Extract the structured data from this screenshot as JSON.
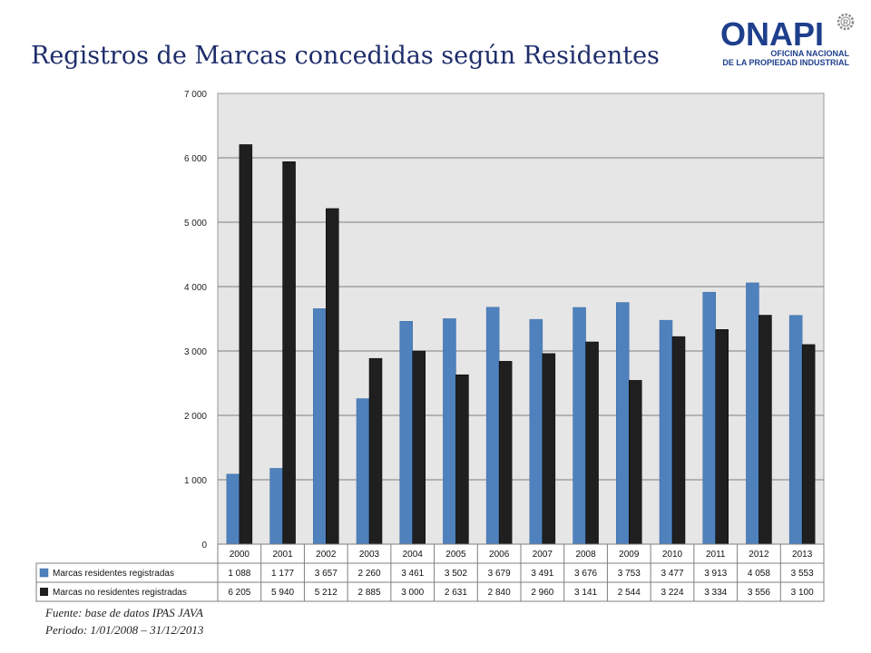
{
  "slide": {
    "title": "Registros de Marcas concedidas según Residentes",
    "logo_main": "ONAPI",
    "logo_line1": "OFICINA NACIONAL",
    "logo_line2": "DE LA PROPIEDAD INDUSTRIAL",
    "logo_mark": "R",
    "source": "Fuente: base de datos IPAS JAVA",
    "period": "Periodo: 1/01/2008 – 31/12/2013"
  },
  "colors": {
    "residents": "#4f81bd",
    "nonresidents": "#1f1f1f",
    "plot_bg": "#e6e6e6",
    "title": "#1f2d6b",
    "logo": "#1e3f8c"
  },
  "chart_data": {
    "type": "bar",
    "categories": [
      "2000",
      "2001",
      "2002",
      "2003",
      "2004",
      "2005",
      "2006",
      "2007",
      "2008",
      "2009",
      "2010",
      "2011",
      "2012",
      "2013"
    ],
    "series": [
      {
        "name": "Marcas residentes registradas",
        "values": [
          1088,
          1177,
          3657,
          2260,
          3461,
          3502,
          3679,
          3491,
          3676,
          3753,
          3477,
          3913,
          4058,
          3553
        ]
      },
      {
        "name": "Marcas no residentes registradas",
        "values": [
          6205,
          5940,
          5212,
          2885,
          3000,
          2631,
          2840,
          2960,
          3141,
          2544,
          3224,
          3334,
          3556,
          3100
        ]
      }
    ],
    "ylim": [
      0,
      7000
    ],
    "yticks": [
      0,
      1000,
      2000,
      3000,
      4000,
      5000,
      6000,
      7000
    ],
    "ytick_labels": [
      "0",
      "1 000",
      "2 000",
      "3 000",
      "4 000",
      "5 000",
      "6 000",
      "7 000"
    ],
    "table": {
      "residents": [
        "1 088",
        "1 177",
        "3 657",
        "2 260",
        "3 461",
        "3 502",
        "3 679",
        "3 491",
        "3 676",
        "3 753",
        "3 477",
        "3 913",
        "4 058",
        "3 553"
      ],
      "nonresidents": [
        "6 205",
        "5 940",
        "5 212",
        "2 885",
        "3 000",
        "2 631",
        "2 840",
        "2 960",
        "3 141",
        "2 544",
        "3 224",
        "3 334",
        "3 556",
        "3 100"
      ]
    },
    "grid": true,
    "legend": "data-table"
  }
}
